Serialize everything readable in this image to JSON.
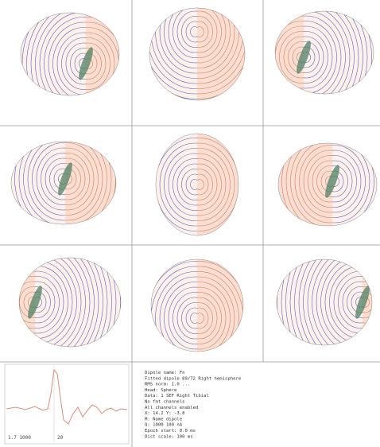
{
  "trace": {
    "scale_label": "1.7 1000",
    "time_label": "20"
  },
  "info": {
    "lines": [
      "Dipole name: Fn",
      "Fitted dipole 89/72 Right hemisphere",
      "RMS norm: 1.0 ...",
      "Head: Sphere",
      "Data: 1 SEF Right Tibial",
      "No fmt channels",
      "All channels enabled",
      "X: 14.2  Y: -3.8",
      "M:  Name   dipole",
      "Q:  1000   100 nA",
      "Epoch start: 0.0 ms",
      "Dist scale: 100 ms"
    ]
  }
}
